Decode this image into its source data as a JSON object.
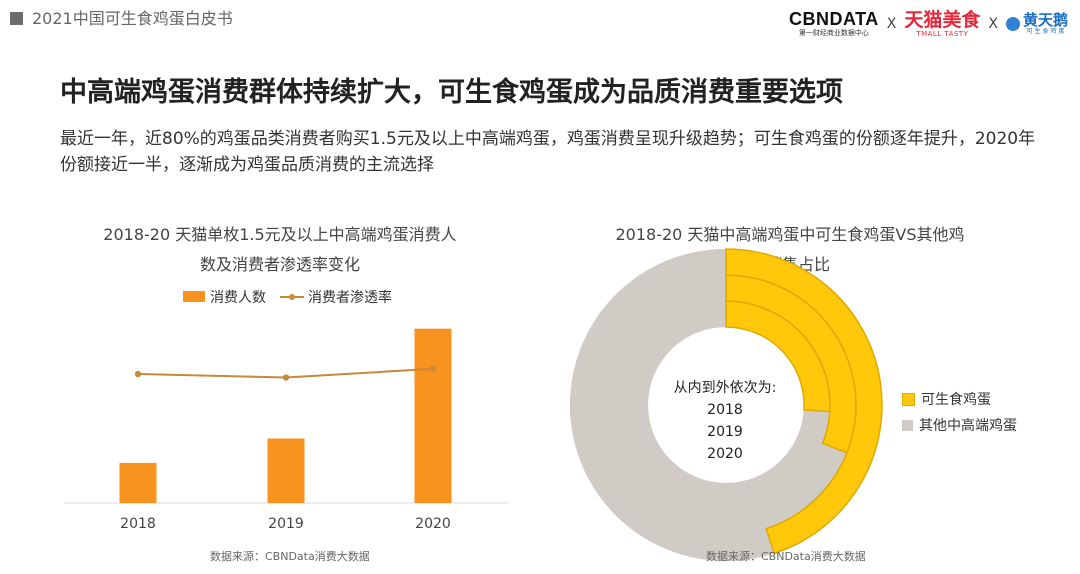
{
  "header": {
    "label": "2021中国可生食鸡蛋白皮书",
    "logos": {
      "cbn_main": "CBNDATA",
      "cbn_sub": "第一财经商业数据中心",
      "sep1": "X",
      "tmall_main": "天猫美食",
      "tmall_sub": "TMALL TASTY",
      "sep2": "X",
      "hty_main": "黄天鹅",
      "hty_sub": "可 生 食 鸡 蛋"
    }
  },
  "title": "中高端鸡蛋消费群体持续扩大，可生食鸡蛋成为品质消费重要选项",
  "description": "最近一年，近80%的鸡蛋品类消费者购买1.5元及以上中高端鸡蛋，鸡蛋消费呈现升级趋势；可生食鸡蛋的份额逐年提升，2020年份额接近一半，逐渐成为鸡蛋品质消费的主流选择",
  "source_label": "数据来源：CBNData消费大数据",
  "colors": {
    "orange": "#f7931e",
    "line": "#c8893a",
    "yellow": "#ffc80a",
    "gray": "#d1cbc6",
    "donut_stroke": "#e0a800"
  },
  "chart_data": [
    {
      "type": "bar",
      "title": "2018-20 天猫单枚1.5元及以上中高端鸡蛋消费人数及消费者渗透率变化",
      "title_lines": [
        "2018-20 天猫单枚1.5元及以上中高端鸡蛋消费人",
        "数及消费者渗透率变化"
      ],
      "categories": [
        "2018",
        "2019",
        "2020"
      ],
      "series": [
        {
          "name": "消费人数",
          "type": "bar",
          "values": [
            0.23,
            0.37,
            1.0
          ]
        },
        {
          "name": "消费者渗透率",
          "type": "line",
          "values": [
            0.74,
            0.72,
            0.77
          ]
        }
      ],
      "ylim": [
        0,
        1.05
      ],
      "legend_position": "top",
      "grid": false
    },
    {
      "type": "pie",
      "title": "2018-20 天猫中高端鸡蛋中可生食鸡蛋VS其他鸡蛋销售占比",
      "title_lines": [
        "2018-20 天猫中高端鸡蛋中可生食鸡蛋VS其他鸡",
        "蛋销售占比"
      ],
      "center_label": "从内到外依次为:",
      "rings": [
        "2018",
        "2019",
        "2020"
      ],
      "series": [
        {
          "name": "可生食鸡蛋",
          "values": [
            0.26,
            0.31,
            0.45
          ]
        },
        {
          "name": "其他中高端鸡蛋",
          "values": [
            0.74,
            0.69,
            0.55
          ]
        }
      ],
      "legend_position": "right"
    }
  ]
}
